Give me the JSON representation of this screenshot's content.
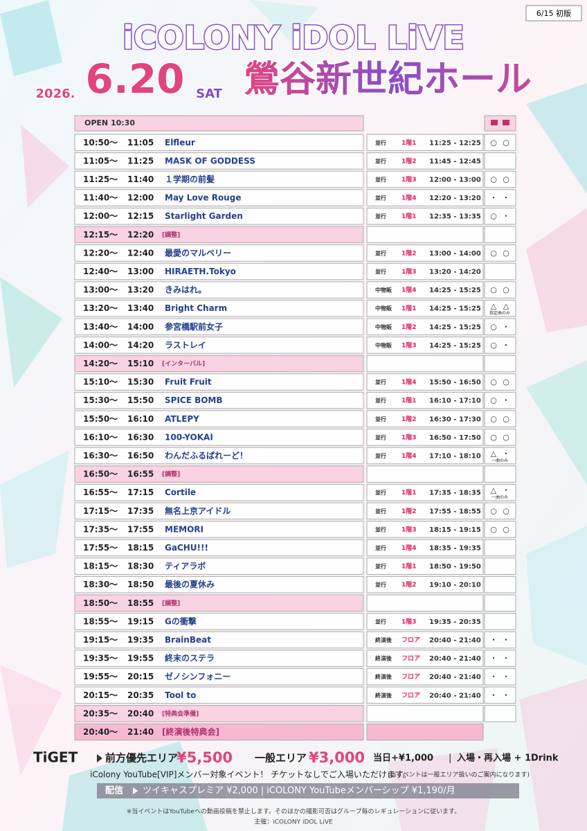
{
  "header": {
    "version": "6/15 初版",
    "title": "iCOLONY iDOL LiVE",
    "year": "2026.",
    "date": "6.20",
    "weekday": "SAT",
    "venue": "鶯谷新世紀ホール"
  },
  "table": {
    "open": "OPEN 10:30",
    "separator": "～",
    "rows": [
      {
        "start": "10:50",
        "end": "11:05",
        "name": "Elfleur",
        "type": "並行",
        "floor": "1階1",
        "merch": "11:25 - 12:25",
        "photo": [
          "○",
          "○"
        ]
      },
      {
        "start": "11:05",
        "end": "11:25",
        "name": "MASK OF GODDESS",
        "type": "並行",
        "floor": "1階2",
        "merch": "11:45 - 12:45"
      },
      {
        "start": "11:25",
        "end": "11:40",
        "name": "１学期の前髪",
        "type": "並行",
        "floor": "1階3",
        "merch": "12:00 - 13:00",
        "photo": [
          "○",
          "○"
        ]
      },
      {
        "start": "11:40",
        "end": "12:00",
        "name": "May Love Rouge",
        "type": "並行",
        "floor": "1階4",
        "merch": "12:20 - 13:20",
        "photo": [
          "・",
          "・"
        ]
      },
      {
        "start": "12:00",
        "end": "12:15",
        "name": "Starlight Garden",
        "type": "並行",
        "floor": "1階1",
        "merch": "12:35 - 13:35",
        "photo": [
          "○",
          "・"
        ]
      },
      {
        "start": "12:15",
        "end": "12:20",
        "break": "[調整]"
      },
      {
        "start": "12:20",
        "end": "12:40",
        "name": "最愛のマルベリー",
        "type": "並行",
        "floor": "1階2",
        "merch": "13:00 - 14:00",
        "photo": [
          "○",
          "○"
        ]
      },
      {
        "start": "12:40",
        "end": "13:00",
        "name": "HIRAETH.Tokyo",
        "type": "並行",
        "floor": "1階3",
        "merch": "13:20 - 14:20"
      },
      {
        "start": "13:00",
        "end": "13:20",
        "name": "きみはれ。",
        "type": "中物販",
        "floor": "1階4",
        "merch": "14:25 - 15:25",
        "photo": [
          "○",
          "○"
        ]
      },
      {
        "start": "13:20",
        "end": "13:40",
        "name": "Bright Charm",
        "type": "中物販",
        "floor": "1階1",
        "merch": "14:25 - 15:25",
        "photo": [
          "△",
          "△"
        ],
        "note": "指定曲のみ"
      },
      {
        "start": "13:40",
        "end": "14:00",
        "name": "参宮橋駅前女子",
        "type": "中物販",
        "floor": "1階2",
        "merch": "14:25 - 15:25",
        "photo": [
          "○",
          "・"
        ]
      },
      {
        "start": "14:00",
        "end": "14:20",
        "name": "ラストレイ",
        "type": "中物販",
        "floor": "1階3",
        "merch": "14:25 - 15:25",
        "photo": [
          "○",
          "・"
        ]
      },
      {
        "start": "14:20",
        "end": "15:10",
        "break": "[インターバル]"
      },
      {
        "start": "15:10",
        "end": "15:30",
        "name": "Fruit Fruit",
        "type": "並行",
        "floor": "1階4",
        "merch": "15:50 - 16:50",
        "photo": [
          "○",
          "○"
        ]
      },
      {
        "start": "15:30",
        "end": "15:50",
        "name": "SPICE BOMB",
        "type": "並行",
        "floor": "1階1",
        "merch": "16:10 - 17:10",
        "photo": [
          "○",
          "・"
        ]
      },
      {
        "start": "15:50",
        "end": "16:10",
        "name": "ATLEPY",
        "type": "並行",
        "floor": "1階2",
        "merch": "16:30 - 17:30",
        "photo": [
          "○",
          "○"
        ]
      },
      {
        "start": "16:10",
        "end": "16:30",
        "name": "100-YOKAI",
        "type": "並行",
        "floor": "1階3",
        "merch": "16:50 - 17:50",
        "photo": [
          "○",
          "○"
        ]
      },
      {
        "start": "16:30",
        "end": "16:50",
        "name": "わんだふるぱれーど！",
        "type": "並行",
        "floor": "1階4",
        "merch": "17:10 - 18:10",
        "photo": [
          "△",
          "・"
        ],
        "note": "一曲のみ"
      },
      {
        "start": "16:50",
        "end": "16:55",
        "break": "[調整]"
      },
      {
        "start": "16:55",
        "end": "17:15",
        "name": "Cortile",
        "type": "並行",
        "floor": "1階1",
        "merch": "17:35 - 18:35",
        "photo": [
          "△",
          "・"
        ],
        "note": "一曲のみ"
      },
      {
        "start": "17:15",
        "end": "17:35",
        "name": "無名上京アイドル",
        "type": "並行",
        "floor": "1階2",
        "merch": "17:55 - 18:55",
        "photo": [
          "○",
          "○"
        ]
      },
      {
        "start": "17:35",
        "end": "17:55",
        "name": "MEMORI",
        "type": "並行",
        "floor": "1階3",
        "merch": "18:15 - 19:15",
        "photo": [
          "○",
          "○"
        ]
      },
      {
        "start": "17:55",
        "end": "18:15",
        "name": "GaCHU!!!",
        "type": "並行",
        "floor": "1階4",
        "merch": "18:35 - 19:35"
      },
      {
        "start": "18:15",
        "end": "18:30",
        "name": "ティアラボ",
        "type": "並行",
        "floor": "1階1",
        "merch": "18:50 - 19:50"
      },
      {
        "start": "18:30",
        "end": "18:50",
        "name": "最後の夏休み",
        "type": "並行",
        "floor": "1階2",
        "merch": "19:10 - 20:10"
      },
      {
        "start": "18:50",
        "end": "18:55",
        "break": "[調整]"
      },
      {
        "start": "18:55",
        "end": "19:15",
        "name": "Gの衝撃",
        "type": "並行",
        "floor": "1階3",
        "merch": "19:35 - 20:35"
      },
      {
        "start": "19:15",
        "end": "19:35",
        "name": "BrainBeat",
        "type": "終演後",
        "floor": "フロア",
        "merch": "20:40 - 21:40",
        "photo": [
          "・",
          "・"
        ]
      },
      {
        "start": "19:35",
        "end": "19:55",
        "name": "終末のステラ",
        "type": "終演後",
        "floor": "フロア",
        "merch": "20:40 - 21:40",
        "photo": [
          "・",
          "・"
        ]
      },
      {
        "start": "19:55",
        "end": "20:15",
        "name": "ゼノシンフォニー",
        "type": "終演後",
        "floor": "フロア",
        "merch": "20:40 - 21:40",
        "photo": [
          "・",
          "・"
        ]
      },
      {
        "start": "20:15",
        "end": "20:35",
        "name": "Tool to",
        "type": "終演後",
        "floor": "フロア",
        "merch": "20:40 - 21:40",
        "photo": [
          "・",
          "・"
        ]
      },
      {
        "start": "20:35",
        "end": "20:40",
        "break": "[特典会準備]"
      },
      {
        "start": "20:40",
        "end": "21:40",
        "break": "[終演後特典会]",
        "final": true
      }
    ]
  },
  "footer": {
    "ticket_brand": "TiGET",
    "front_area": "前方優先エリア",
    "front_price": "¥5,500",
    "general_area": "一般エリア",
    "general_price": "¥3,000",
    "door": "当日+¥1,000",
    "divider": "|",
    "entry": "入場・再入場 + 1Drink",
    "vip": "iColony YouTube[VIP]メンバー対象イベント！ チケットなしでご入場いただけます。",
    "vip_note": "(当イベントは一般エリア扱いのご案内になります)",
    "stream_label": "配信",
    "stream": "ツイキャスプレミア ¥2,000 | iCOLONY YouTubeメンバーシップ ¥1,190/月",
    "notice": "※当イベントはYouTubeへの動画投稿を禁止します。そのほかの撮影可否はグループ毎のレギュレーションに従います。",
    "organizer": "主催：iCOLONY iDOL LiVE"
  }
}
